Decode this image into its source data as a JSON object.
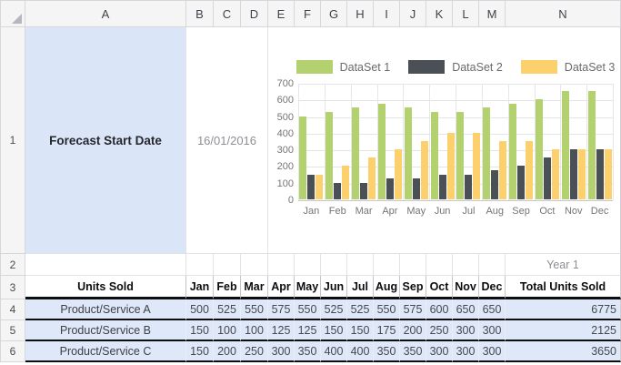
{
  "colors": {
    "header_bg": "#f5f5f6",
    "header_border": "#d7d7da",
    "grid_border": "#e3e3e6",
    "highlight_cell": "#dbe5f8",
    "data_row_fill": "#dfe8f9",
    "table_black": "#0e0e10",
    "muted_text": "#8e8e94",
    "chart_text": "#757575"
  },
  "spreadsheet": {
    "column_headers": [
      "A",
      "B",
      "C",
      "D",
      "E",
      "F",
      "G",
      "H",
      "I",
      "J",
      "K",
      "L",
      "M",
      "N"
    ],
    "row_headers": [
      "1",
      "2",
      "3",
      "4",
      "5",
      "6"
    ]
  },
  "cells": {
    "forecast_label": "Forecast Start Date",
    "forecast_date": "16/01/2016",
    "year_label": "Year 1"
  },
  "table": {
    "header_label": "Units Sold",
    "months": [
      "Jan",
      "Feb",
      "Mar",
      "Apr",
      "May",
      "Jun",
      "Jul",
      "Aug",
      "Sep",
      "Oct",
      "Nov",
      "Dec"
    ],
    "total_label": "Total Units Sold",
    "rows": [
      {
        "label": "Product/Service A",
        "values": [
          500,
          525,
          550,
          575,
          550,
          525,
          525,
          550,
          575,
          600,
          650,
          650
        ],
        "total": "6775"
      },
      {
        "label": "Product/Service B",
        "values": [
          150,
          100,
          100,
          125,
          125,
          150,
          150,
          175,
          200,
          250,
          300,
          300
        ],
        "total": "2125"
      },
      {
        "label": "Product/Service C",
        "values": [
          150,
          200,
          250,
          300,
          350,
          400,
          400,
          350,
          350,
          300,
          300,
          300
        ],
        "total": "3650"
      }
    ]
  },
  "chart_data": {
    "type": "bar",
    "title": "",
    "categories": [
      "Jan",
      "Feb",
      "Mar",
      "Apr",
      "May",
      "Jun",
      "Jul",
      "Aug",
      "Sep",
      "Oct",
      "Nov",
      "Dec"
    ],
    "series": [
      {
        "name": "DataSet 1",
        "color": "#b3d16e",
        "values": [
          500,
          525,
          550,
          575,
          550,
          525,
          525,
          550,
          575,
          600,
          650,
          650
        ]
      },
      {
        "name": "DataSet 2",
        "color": "#4a5055",
        "values": [
          150,
          100,
          100,
          125,
          125,
          150,
          150,
          175,
          200,
          250,
          300,
          300
        ]
      },
      {
        "name": "DataSet 3",
        "color": "#fcd06c",
        "values": [
          150,
          200,
          250,
          300,
          350,
          400,
          400,
          350,
          350,
          300,
          300,
          300
        ]
      }
    ],
    "ylim": [
      0,
      700
    ],
    "yticks": [
      0,
      100,
      200,
      300,
      400,
      500,
      600,
      700
    ],
    "legend_position": "top",
    "grid": true
  }
}
